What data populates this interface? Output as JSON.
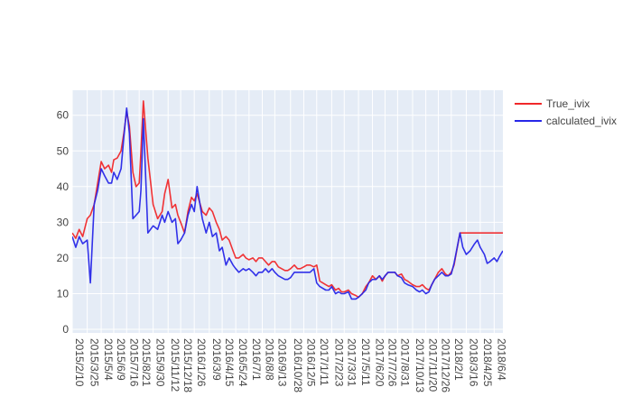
{
  "chart_data": {
    "type": "line",
    "title": "",
    "xlabel": "",
    "ylabel": "",
    "ylim": [
      -1,
      67
    ],
    "yticks": [
      0,
      10,
      20,
      30,
      40,
      50,
      60
    ],
    "grid": true,
    "legend_placement": "top-right, outside plot",
    "x_tick_labels": [
      "2015/2/10",
      "2015/3/25",
      "2015/5/4",
      "2015/6/9",
      "2015/7/16",
      "2015/8/21",
      "2015/9/30",
      "2015/11/12",
      "2015/12/18",
      "2016/1/26",
      "2016/3/9",
      "2016/4/15",
      "2016/5/24",
      "2016/7/1",
      "2016/8/8",
      "2016/9/13",
      "2016/10/28",
      "2016/12/5",
      "2017/1/11",
      "2017/2/23",
      "2017/3/31",
      "2017/5/11",
      "2017/6/20",
      "2017/7/26",
      "2017/8/31",
      "2017/10/13",
      "2017/11/20",
      "2017/12/26",
      "2018/2/1",
      "2018/3/16",
      "2018/4/25",
      "2018/6/4"
    ],
    "x": [
      "2015/2/10",
      "2015/2/20",
      "2015/3/2",
      "2015/3/12",
      "2015/3/25",
      "2015/4/3",
      "2015/4/14",
      "2015/4/24",
      "2015/5/4",
      "2015/5/14",
      "2015/5/25",
      "2015/6/3",
      "2015/6/9",
      "2015/6/19",
      "2015/6/30",
      "2015/7/8",
      "2015/7/16",
      "2015/7/24",
      "2015/8/3",
      "2015/8/12",
      "2015/8/21",
      "2015/8/26",
      "2015/9/2",
      "2015/9/15",
      "2015/9/30",
      "2015/10/13",
      "2015/10/26",
      "2015/11/2",
      "2015/11/12",
      "2015/11/23",
      "2015/12/3",
      "2015/12/10",
      "2015/12/18",
      "2015/12/29",
      "2016/1/8",
      "2016/1/18",
      "2016/1/26",
      "2016/2/3",
      "2016/2/18",
      "2016/2/29",
      "2016/3/9",
      "2016/3/18",
      "2016/3/29",
      "2016/4/7",
      "2016/4/15",
      "2016/4/26",
      "2016/5/5",
      "2016/5/16",
      "2016/5/24",
      "2016/6/2",
      "2016/6/14",
      "2016/6/22",
      "2016/7/1",
      "2016/7/12",
      "2016/7/21",
      "2016/7/29",
      "2016/8/8",
      "2016/8/17",
      "2016/8/26",
      "2016/9/5",
      "2016/9/13",
      "2016/9/23",
      "2016/10/12",
      "2016/10/20",
      "2016/10/28",
      "2016/11/8",
      "2016/11/17",
      "2016/11/25",
      "2016/12/5",
      "2016/12/14",
      "2016/12/23",
      "2017/1/3",
      "2017/1/11",
      "2017/1/20",
      "2017/2/6",
      "2017/2/15",
      "2017/2/23",
      "2017/3/6",
      "2017/3/15",
      "2017/3/23",
      "2017/3/31",
      "2017/4/12",
      "2017/4/21",
      "2017/5/3",
      "2017/5/11",
      "2017/5/22",
      "2017/6/1",
      "2017/6/9",
      "2017/6/20",
      "2017/6/30",
      "2017/7/10",
      "2017/7/18",
      "2017/7/26",
      "2017/8/4",
      "2017/8/14",
      "2017/8/23",
      "2017/8/31",
      "2017/9/11",
      "2017/9/20",
      "2017/9/29",
      "2017/10/13",
      "2017/10/24",
      "2017/11/2",
      "2017/11/10",
      "2017/11/20",
      "2017/11/29",
      "2017/12/7",
      "2017/12/15",
      "2017/12/26",
      "2018/1/5",
      "2018/1/15",
      "2018/1/23",
      "2018/2/1",
      "2018/2/9",
      "2018/2/26",
      "2018/3/6",
      "2018/3/16",
      "2018/3/27",
      "2018/4/9",
      "2018/4/17",
      "2018/4/25",
      "2018/5/7",
      "2018/5/15",
      "2018/5/23",
      "2018/6/4",
      "2018/6/12",
      "2018/6/20",
      "2018/6/29"
    ],
    "series": [
      {
        "name": "True_ivix",
        "color": "#f0282a",
        "values": [
          27,
          25.5,
          28,
          26,
          31,
          32,
          35,
          41,
          47,
          45,
          46,
          44,
          47.5,
          48,
          50,
          55,
          61,
          57,
          44,
          40,
          41,
          50,
          64,
          48,
          35,
          31,
          33,
          38,
          42,
          34,
          35,
          32,
          30,
          27,
          33,
          37,
          36,
          38,
          33,
          32,
          34,
          33,
          30,
          28,
          25,
          26,
          25,
          22,
          20,
          20,
          21,
          20,
          19.5,
          20,
          19,
          20,
          20,
          19,
          18,
          19,
          19,
          17.5,
          16.5,
          16.5,
          17,
          18,
          17,
          17,
          17.5,
          18,
          18,
          17.5,
          18,
          13.5,
          12.5,
          12,
          12.5,
          11,
          11.5,
          10.5,
          10.5,
          11,
          10,
          9.5,
          9,
          10,
          12,
          13,
          15,
          14,
          15,
          13.5,
          15,
          16,
          16,
          16,
          15,
          15.5,
          14,
          13.5,
          12.5,
          12,
          12,
          12.5,
          11.5,
          11,
          12.5,
          14,
          16,
          17,
          15.5,
          15,
          16,
          18,
          27,
          27,
          27,
          27,
          27,
          27,
          27,
          27,
          27,
          27,
          27,
          27,
          27,
          27
        ]
      },
      {
        "name": "calculated_ivix",
        "color": "#2727e8",
        "values": [
          26,
          23,
          26,
          24,
          25,
          13,
          35,
          39,
          45,
          43,
          41,
          41,
          44,
          42,
          45,
          54,
          62,
          55,
          31,
          32,
          33,
          39,
          59,
          27,
          29,
          28,
          32,
          30,
          33,
          30,
          31,
          24,
          25,
          27,
          32,
          35,
          33,
          40,
          31,
          27,
          30,
          26,
          27,
          22,
          23,
          18,
          20,
          18,
          17,
          16,
          17,
          16.5,
          17,
          16,
          15,
          16,
          16,
          17,
          16,
          17,
          16,
          15,
          14,
          14,
          14.5,
          16,
          16,
          16,
          16,
          16,
          16,
          17,
          13,
          12,
          11,
          11,
          12,
          10,
          10.5,
          10,
          10,
          10.5,
          8.5,
          8.5,
          9,
          10,
          11,
          13,
          14,
          14,
          15,
          14,
          15,
          16,
          16,
          16,
          15,
          14.5,
          13,
          12.5,
          12,
          11,
          10.5,
          11,
          10,
          10.5,
          12.5,
          14,
          15,
          16,
          15,
          15,
          15.5,
          18.5,
          27,
          23,
          21,
          22,
          24,
          25,
          23,
          21,
          18.5,
          19,
          20,
          19,
          20.5,
          22
        ]
      }
    ],
    "y_scale": "linear"
  }
}
